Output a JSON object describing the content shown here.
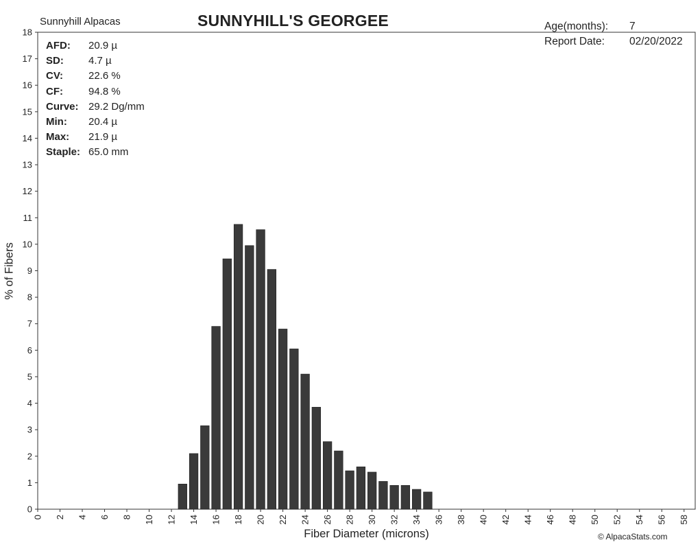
{
  "header": {
    "brand": "Sunnyhill Alpacas",
    "title": "SUNNYHILL'S GEORGEE",
    "meta": [
      {
        "label": "Age(months):",
        "value": "7"
      },
      {
        "label": "Report Date:",
        "value": "02/20/2022"
      }
    ]
  },
  "stats": [
    {
      "label": "AFD:",
      "value": "20.9 µ"
    },
    {
      "label": "SD:",
      "value": "4.7 µ"
    },
    {
      "label": "CV:",
      "value": "22.6 %"
    },
    {
      "label": "CF:",
      "value": "94.8 %"
    },
    {
      "label": "Curve:",
      "value": "29.2 Dg/mm"
    },
    {
      "label": "Min:",
      "value": "20.4 µ"
    },
    {
      "label": "Max:",
      "value": "21.9 µ"
    },
    {
      "label": "Staple:",
      "value": "65.0 mm"
    }
  ],
  "footer": {
    "copyright": "© AlpacaStats.com"
  },
  "chart_data": {
    "type": "bar",
    "title": "SUNNYHILL'S GEORGEE",
    "xlabel": "Fiber Diameter (microns)",
    "ylabel": "% of Fibers",
    "xlim": [
      0,
      59
    ],
    "ylim": [
      0,
      18
    ],
    "x_ticks": [
      0,
      2,
      4,
      6,
      8,
      10,
      12,
      14,
      16,
      18,
      20,
      22,
      24,
      26,
      28,
      30,
      32,
      34,
      36,
      38,
      40,
      42,
      44,
      46,
      48,
      50,
      52,
      54,
      56,
      58
    ],
    "y_ticks": [
      0,
      1,
      2,
      3,
      4,
      5,
      6,
      7,
      8,
      9,
      10,
      11,
      12,
      13,
      14,
      15,
      16,
      17,
      18
    ],
    "grid": false,
    "bar_color": "#3a3a3a",
    "x": [
      13,
      14,
      15,
      16,
      17,
      18,
      19,
      20,
      21,
      22,
      23,
      24,
      25,
      26,
      27,
      28,
      29,
      30,
      31,
      32,
      33,
      34,
      35
    ],
    "values": [
      0.95,
      2.1,
      3.15,
      6.9,
      9.45,
      10.75,
      9.95,
      10.55,
      9.05,
      6.8,
      6.05,
      5.1,
      3.85,
      2.55,
      2.2,
      1.45,
      1.6,
      1.4,
      1.05,
      0.9,
      0.9,
      0.75,
      0.65
    ]
  }
}
